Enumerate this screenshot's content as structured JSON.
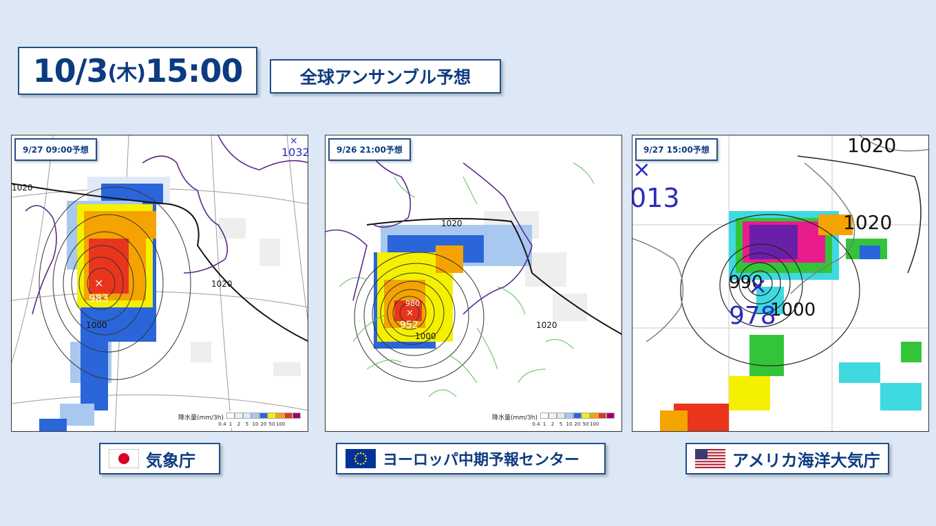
{
  "header": {
    "date": "10/3",
    "weekday": "(木)",
    "time": "15:00",
    "subtitle": "全球アンサンブル予想"
  },
  "colors": {
    "accent": "#0d3b80",
    "border": "#1f4e8c",
    "background": "#dce8f5"
  },
  "legend": {
    "title": "降水量(mm/3h)",
    "ticks": [
      "0.4",
      "1",
      "2",
      "5",
      "10",
      "20",
      "50",
      "100"
    ],
    "colors": [
      "#ffffff",
      "#f2f2f2",
      "#dfe9f7",
      "#a8c8f0",
      "#2a66d9",
      "#f5f000",
      "#f5a300",
      "#e8351c",
      "#a3006e"
    ]
  },
  "panels": [
    {
      "id": "jma",
      "forecast_label": "9/27 09:00予想",
      "low_pressure": "983",
      "isobars": [
        "1000",
        "1020",
        "1020"
      ],
      "other_labels": [
        "1032"
      ],
      "agency": "気象庁",
      "flag_icon": "japan-flag-icon"
    },
    {
      "id": "ecmwf",
      "forecast_label": "9/26 21:00予想",
      "low_pressure": "952",
      "isobars": [
        "980",
        "1000",
        "1020",
        "1020"
      ],
      "agency": "ヨーロッパ中期予報センター",
      "flag_icon": "eu-flag-icon"
    },
    {
      "id": "noaa",
      "forecast_label": "9/27 15:00予想",
      "low_pressure": "978",
      "isobars": [
        "1020",
        "1020",
        "990",
        "1000"
      ],
      "other_labels": [
        "013"
      ],
      "agency": "アメリカ海洋大気庁",
      "flag_icon": "usa-flag-icon"
    }
  ]
}
